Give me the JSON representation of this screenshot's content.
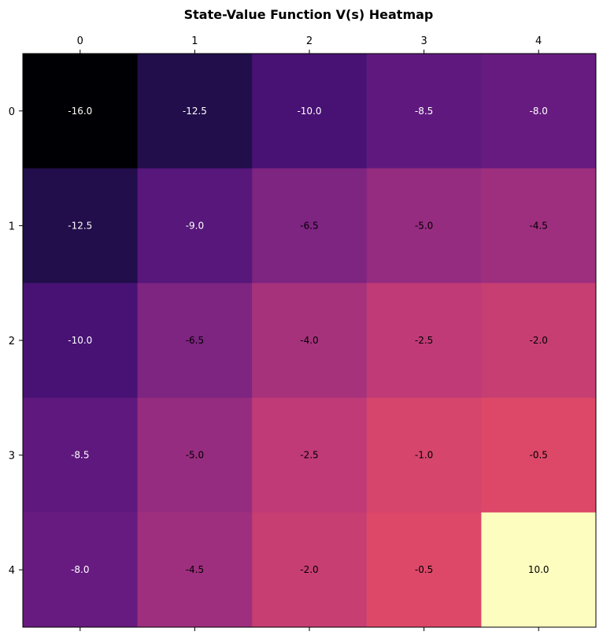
{
  "chart_data": {
    "type": "heatmap",
    "title": "State-Value Function V(s) Heatmap",
    "x_ticks": [
      "0",
      "1",
      "2",
      "3",
      "4"
    ],
    "y_ticks": [
      "0",
      "1",
      "2",
      "3",
      "4"
    ],
    "colormap": "magma",
    "value_range": [
      -16.0,
      10.0
    ],
    "values": [
      [
        -16.0,
        -12.5,
        -10.0,
        -8.5,
        -8.0
      ],
      [
        -12.5,
        -9.0,
        -6.5,
        -5.0,
        -4.5
      ],
      [
        -10.0,
        -6.5,
        -4.0,
        -2.5,
        -2.0
      ],
      [
        -8.5,
        -5.0,
        -2.5,
        -1.0,
        -0.5
      ],
      [
        -8.0,
        -4.5,
        -2.0,
        -0.5,
        10.0
      ]
    ],
    "cell_labels": [
      [
        "-16.0",
        "-12.5",
        "-10.0",
        "-8.5",
        "-8.0"
      ],
      [
        "-12.5",
        "-9.0",
        "-6.5",
        "-5.0",
        "-4.5"
      ],
      [
        "-10.0",
        "-6.5",
        "-4.0",
        "-2.5",
        "-2.0"
      ],
      [
        "-8.5",
        "-5.0",
        "-2.5",
        "-1.0",
        "-0.5"
      ],
      [
        "-8.0",
        "-4.5",
        "-2.0",
        "-0.5",
        "10.0"
      ]
    ],
    "xaxis_position": "top",
    "grid": false
  }
}
